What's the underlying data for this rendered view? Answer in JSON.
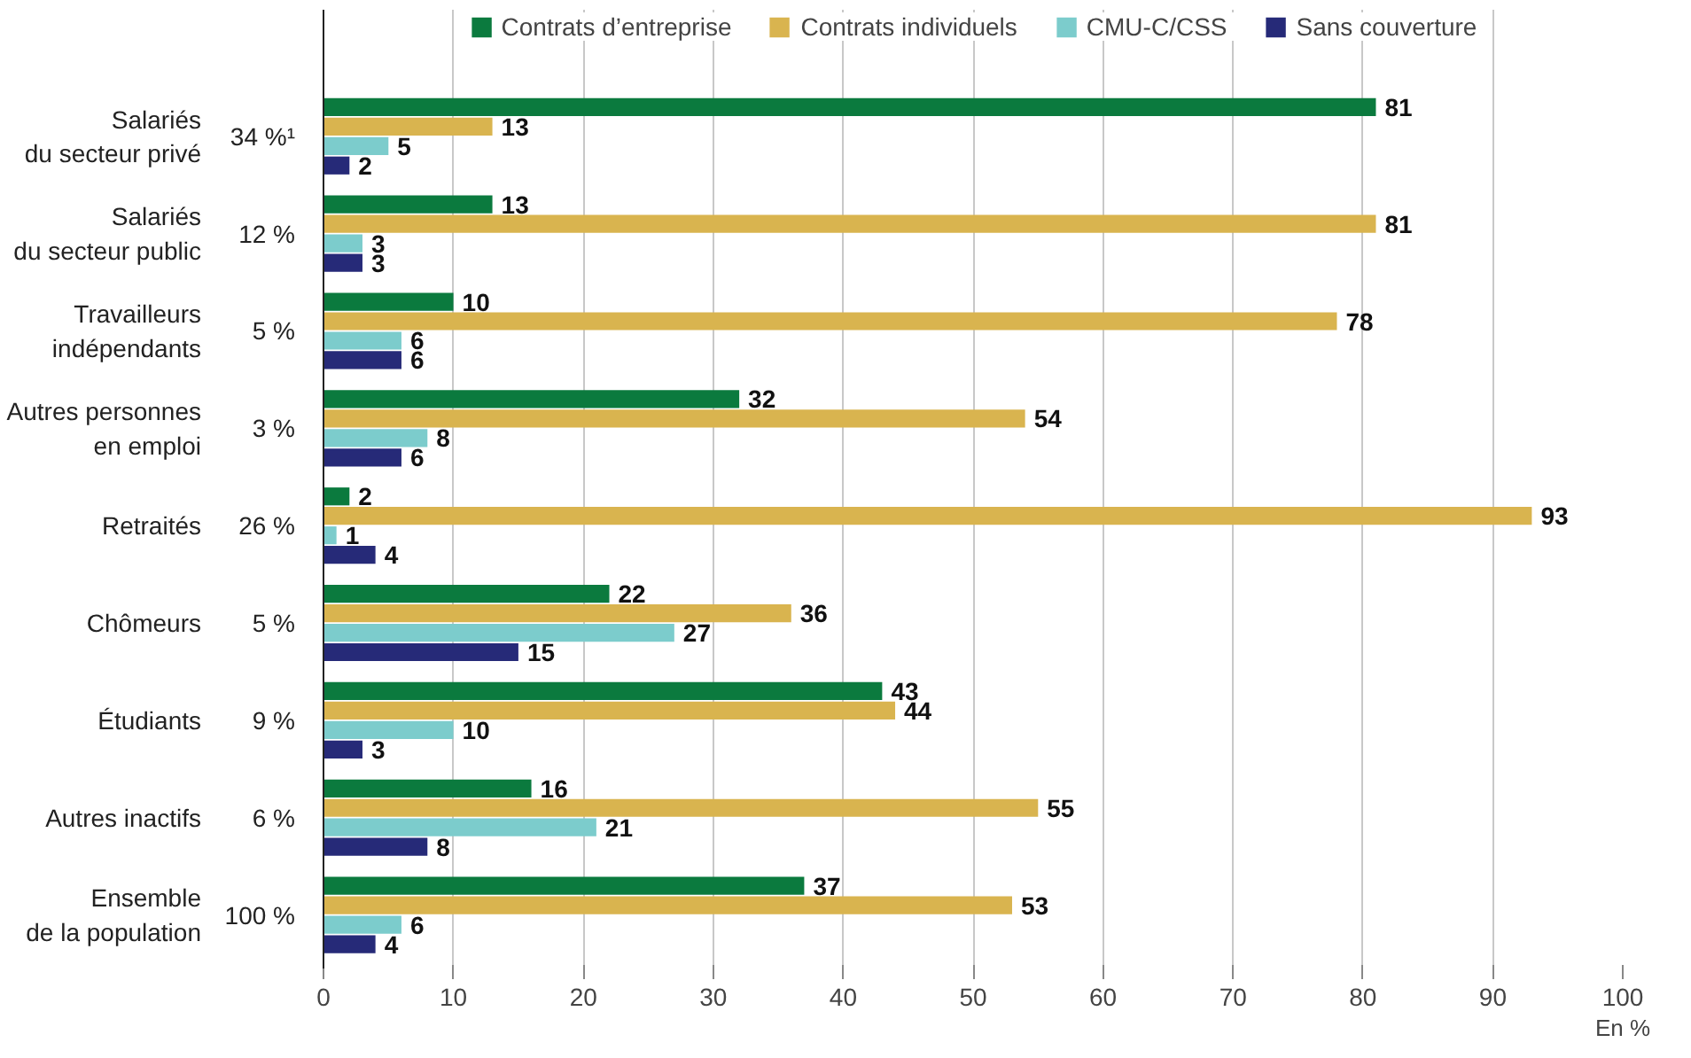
{
  "chart_data": {
    "type": "bar",
    "orientation": "horizontal",
    "categories": [
      "Salariés\ndu secteur privé",
      "Salariés\ndu secteur public",
      "Travailleurs\nindépendants",
      "Autres personnes\nen emploi",
      "Retraités",
      "Chômeurs",
      "Étudiants",
      "Autres inactifs",
      "Ensemble\nde la population"
    ],
    "series": [
      {
        "name": "Contrats d’entreprise",
        "color": "#0b7a3e",
        "values": [
          81,
          13,
          10,
          32,
          2,
          22,
          43,
          16,
          37
        ]
      },
      {
        "name": "Contrats individuels",
        "color": "#d9b44f",
        "values": [
          13,
          81,
          78,
          54,
          93,
          36,
          44,
          55,
          53
        ]
      },
      {
        "name": "CMU-C/CSS",
        "color": "#7ccccc",
        "values": [
          5,
          3,
          6,
          8,
          1,
          27,
          10,
          21,
          6
        ]
      },
      {
        "name": "Sans couverture",
        "color": "#262a78",
        "values": [
          2,
          3,
          6,
          6,
          4,
          15,
          3,
          8,
          4
        ]
      }
    ],
    "annotations": [
      "34 %¹",
      "12 %",
      "5 %",
      "3 %",
      "26 %",
      "5 %",
      "9 %",
      "6 %",
      "100 %"
    ],
    "xlabel": "En %",
    "xlim": [
      0,
      100
    ],
    "xticks": [
      0,
      10,
      20,
      30,
      40,
      50,
      60,
      70,
      80,
      90,
      100
    ],
    "grid": "x",
    "legend": "top",
    "data_labels": true
  }
}
